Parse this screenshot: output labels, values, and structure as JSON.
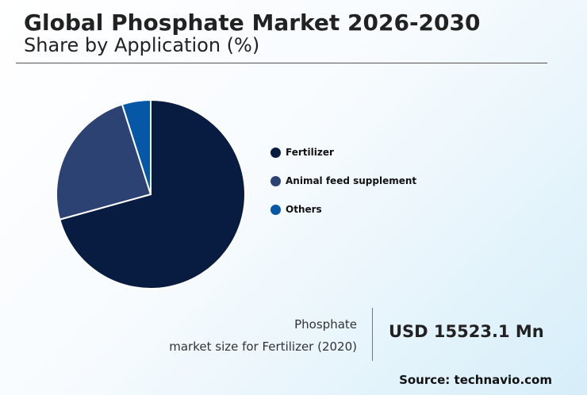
{
  "header": {
    "title": "Global Phosphate Market 2026-2030",
    "subtitle": "Share by Application (%)"
  },
  "chart_data": {
    "type": "pie",
    "title": "Global Phosphate Market 2026-2030",
    "subtitle": "Share by Application (%)",
    "categories": [
      "Fertilizer",
      "Animal feed supplement",
      "Others"
    ],
    "values": [
      70.7,
      24.4,
      4.9
    ],
    "colors": [
      "#081c42",
      "#2c4272",
      "#0657a6"
    ],
    "start_angle": "12 o'clock",
    "direction": "clockwise",
    "legend_position": "right"
  },
  "footer": {
    "label_line1": "Phosphate",
    "label_line2": "market size for Fertilizer (2020)",
    "value": "USD 15523.1 Mn",
    "source": "Source: technavio.com"
  }
}
